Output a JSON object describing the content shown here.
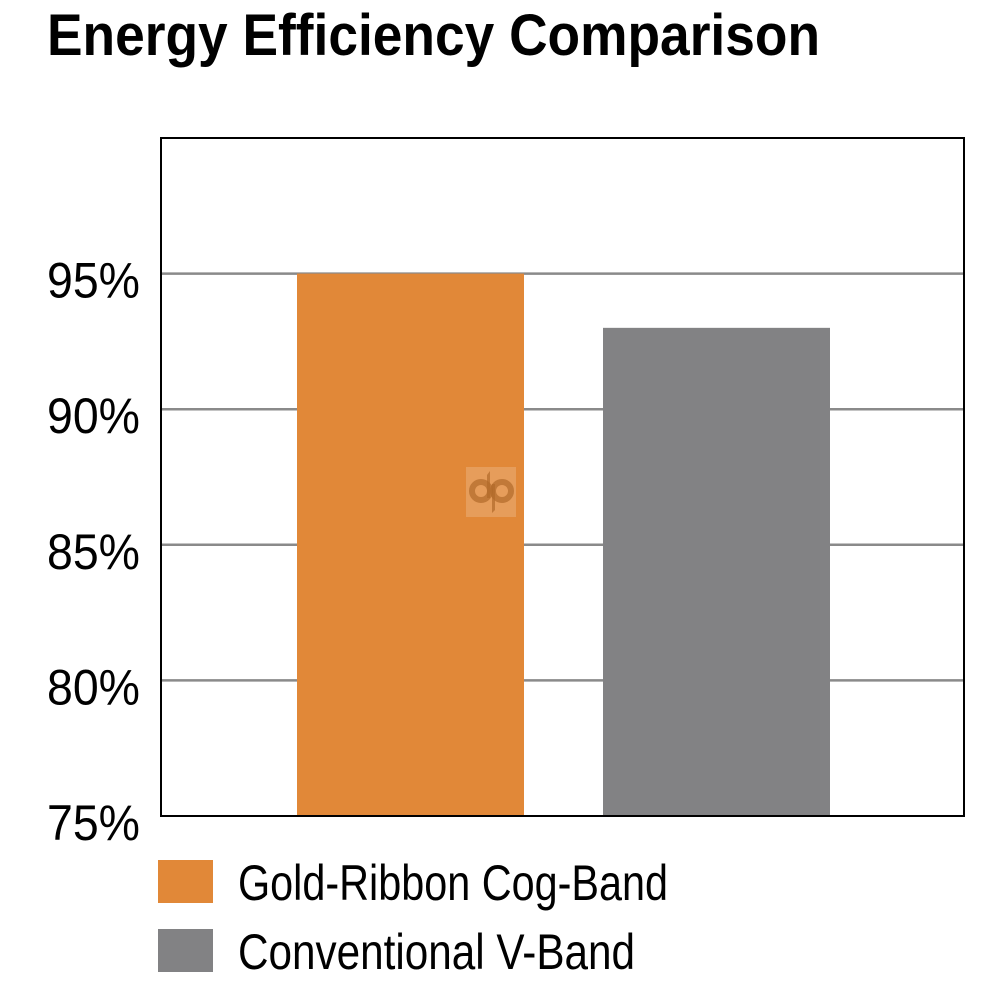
{
  "chart_data": {
    "type": "bar",
    "title": "Energy Efficiency Comparison",
    "categories": [
      "Gold-Ribbon Cog-Band",
      "Conventional V-Band"
    ],
    "values": [
      95,
      93
    ],
    "unit": "%",
    "ylim": [
      75,
      100
    ],
    "yticks": [
      75,
      80,
      85,
      90,
      95
    ],
    "ytick_labels": [
      "75%",
      "80%",
      "85%",
      "90%",
      "95%"
    ],
    "xlabel": "",
    "ylabel": "",
    "grid": "horizontal",
    "legend_position": "bottom-left",
    "series": [
      {
        "name": "Gold-Ribbon Cog-Band",
        "value": 95,
        "color": "#E18838"
      },
      {
        "name": "Conventional V-Band",
        "value": 93,
        "color": "#828284"
      }
    ],
    "watermark": "dp"
  }
}
